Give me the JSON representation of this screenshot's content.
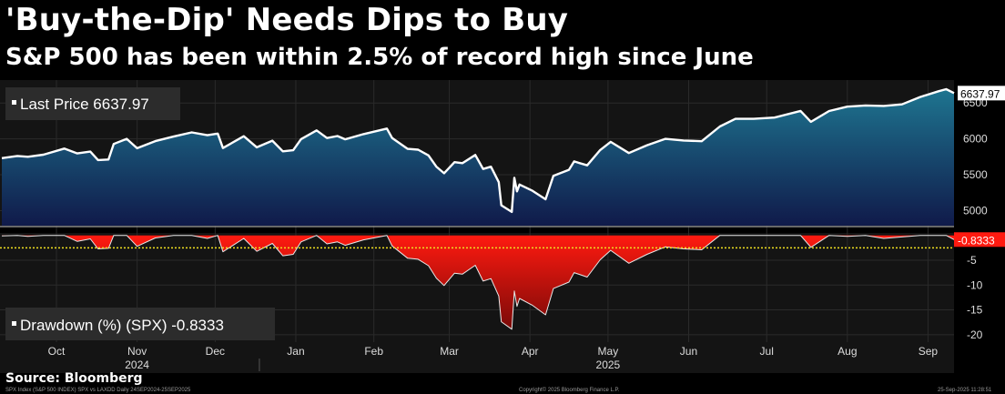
{
  "title": "'Buy-the-Dip' Needs Dips to Buy",
  "subtitle": "S&P 500 has been within 2.5% of record high since June",
  "source": "Source: Bloomberg",
  "footer": {
    "left": "SPX Index (S&P 500 INDEX) SPX vs LAXDD Daily 24SEP2024-25SEP2025",
    "middle": "Copyright© 2025 Bloomberg Finance L.P.",
    "right": "25-Sep-2025 11:28:51"
  },
  "colors": {
    "price_line": "#ffffff",
    "price_fill_top": "#1e7590",
    "price_fill_bottom": "#101a4a",
    "drawdown_fill_top": "#ff1a10",
    "drawdown_fill_bottom": "#7a0a08",
    "threshold_line": "#f0e020",
    "background": "#000000",
    "panel": "#141414"
  },
  "chart_data": [
    {
      "type": "area",
      "legend": "Last Price",
      "last_value_label": "6637.97",
      "yticks": [
        5000,
        5500,
        6000,
        6500
      ],
      "ylim": [
        4790,
        6820
      ],
      "x_date_range": [
        "2024-09-24",
        "2025-09-25"
      ],
      "series": [
        {
          "name": "Last Price",
          "points": [
            [
              "2024-09-24",
              5732
            ],
            [
              "2024-09-30",
              5762
            ],
            [
              "2024-10-04",
              5751
            ],
            [
              "2024-10-10",
              5780
            ],
            [
              "2024-10-18",
              5864
            ],
            [
              "2024-10-23",
              5797
            ],
            [
              "2024-10-28",
              5823
            ],
            [
              "2024-10-31",
              5705
            ],
            [
              "2024-11-04",
              5712
            ],
            [
              "2024-11-06",
              5929
            ],
            [
              "2024-11-11",
              6001
            ],
            [
              "2024-11-15",
              5870
            ],
            [
              "2024-11-22",
              5969
            ],
            [
              "2024-11-29",
              6032
            ],
            [
              "2024-12-06",
              6090
            ],
            [
              "2024-12-12",
              6051
            ],
            [
              "2024-12-16",
              6074
            ],
            [
              "2024-12-18",
              5872
            ],
            [
              "2024-12-26",
              6037
            ],
            [
              "2024-12-31",
              5882
            ],
            [
              "2025-01-06",
              5975
            ],
            [
              "2025-01-10",
              5827
            ],
            [
              "2025-01-14",
              5842
            ],
            [
              "2025-01-17",
              5997
            ],
            [
              "2025-01-23",
              6118
            ],
            [
              "2025-01-27",
              6012
            ],
            [
              "2025-01-31",
              6040
            ],
            [
              "2025-02-03",
              5994
            ],
            [
              "2025-02-10",
              6066
            ],
            [
              "2025-02-19",
              6144
            ],
            [
              "2025-02-21",
              6013
            ],
            [
              "2025-02-27",
              5861
            ],
            [
              "2025-03-03",
              5849
            ],
            [
              "2025-03-07",
              5770
            ],
            [
              "2025-03-10",
              5614
            ],
            [
              "2025-03-13",
              5521
            ],
            [
              "2025-03-17",
              5675
            ],
            [
              "2025-03-20",
              5662
            ],
            [
              "2025-03-25",
              5776
            ],
            [
              "2025-03-28",
              5581
            ],
            [
              "2025-03-31",
              5612
            ],
            [
              "2025-04-03",
              5396
            ],
            [
              "2025-04-04",
              5074
            ],
            [
              "2025-04-08",
              4982
            ],
            [
              "2025-04-09",
              5457
            ],
            [
              "2025-04-10",
              5268
            ],
            [
              "2025-04-11",
              5363
            ],
            [
              "2025-04-16",
              5276
            ],
            [
              "2025-04-21",
              5158
            ],
            [
              "2025-04-24",
              5485
            ],
            [
              "2025-04-30",
              5569
            ],
            [
              "2025-05-02",
              5686
            ],
            [
              "2025-05-07",
              5631
            ],
            [
              "2025-05-12",
              5844
            ],
            [
              "2025-05-16",
              5958
            ],
            [
              "2025-05-23",
              5802
            ],
            [
              "2025-05-30",
              5912
            ],
            [
              "2025-06-06",
              6000
            ],
            [
              "2025-06-13",
              5977
            ],
            [
              "2025-06-20",
              5967
            ],
            [
              "2025-06-27",
              6173
            ],
            [
              "2025-07-03",
              6279
            ],
            [
              "2025-07-10",
              6280
            ],
            [
              "2025-07-18",
              6297
            ],
            [
              "2025-07-28",
              6390
            ],
            [
              "2025-08-01",
              6238
            ],
            [
              "2025-08-08",
              6389
            ],
            [
              "2025-08-15",
              6449
            ],
            [
              "2025-08-22",
              6466
            ],
            [
              "2025-08-29",
              6460
            ],
            [
              "2025-09-05",
              6481
            ],
            [
              "2025-09-12",
              6584
            ],
            [
              "2025-09-19",
              6664
            ],
            [
              "2025-09-22",
              6693
            ],
            [
              "2025-09-25",
              6638
            ]
          ]
        }
      ]
    },
    {
      "type": "area",
      "legend": "Drawdown (%) (SPX)",
      "legend_value": "-0.8333",
      "last_value_label": "-0.8333",
      "yticks": [
        -5,
        -10,
        -15,
        -20
      ],
      "ylim": [
        -21.5,
        0.5
      ],
      "threshold": -2.5,
      "series": [
        {
          "name": "Drawdown (%) (SPX)",
          "points": [
            [
              "2024-09-24",
              -0.1
            ],
            [
              "2024-09-30",
              0
            ],
            [
              "2024-10-04",
              -0.2
            ],
            [
              "2024-10-10",
              0
            ],
            [
              "2024-10-18",
              0
            ],
            [
              "2024-10-23",
              -1.2
            ],
            [
              "2024-10-28",
              -0.7
            ],
            [
              "2024-10-31",
              -2.7
            ],
            [
              "2024-11-04",
              -2.6
            ],
            [
              "2024-11-06",
              0
            ],
            [
              "2024-11-11",
              0
            ],
            [
              "2024-11-15",
              -2.2
            ],
            [
              "2024-11-22",
              -0.5
            ],
            [
              "2024-11-29",
              0
            ],
            [
              "2024-12-06",
              0
            ],
            [
              "2024-12-12",
              -0.6
            ],
            [
              "2024-12-16",
              0
            ],
            [
              "2024-12-18",
              -3.3
            ],
            [
              "2024-12-26",
              -0.6
            ],
            [
              "2024-12-31",
              -3.2
            ],
            [
              "2025-01-06",
              -1.6
            ],
            [
              "2025-01-10",
              -4.1
            ],
            [
              "2025-01-14",
              -3.8
            ],
            [
              "2025-01-17",
              -1.3
            ],
            [
              "2025-01-23",
              0
            ],
            [
              "2025-01-27",
              -1.7
            ],
            [
              "2025-01-31",
              -1.3
            ],
            [
              "2025-02-03",
              -2.0
            ],
            [
              "2025-02-10",
              -0.9
            ],
            [
              "2025-02-19",
              0
            ],
            [
              "2025-02-21",
              -2.1
            ],
            [
              "2025-02-27",
              -4.6
            ],
            [
              "2025-03-03",
              -4.8
            ],
            [
              "2025-03-07",
              -6.1
            ],
            [
              "2025-03-10",
              -8.6
            ],
            [
              "2025-03-13",
              -10.1
            ],
            [
              "2025-03-17",
              -7.6
            ],
            [
              "2025-03-20",
              -7.8
            ],
            [
              "2025-03-25",
              -6.0
            ],
            [
              "2025-03-28",
              -9.2
            ],
            [
              "2025-03-31",
              -8.7
            ],
            [
              "2025-04-03",
              -12.2
            ],
            [
              "2025-04-04",
              -17.4
            ],
            [
              "2025-04-08",
              -18.9
            ],
            [
              "2025-04-09",
              -11.2
            ],
            [
              "2025-04-10",
              -14.3
            ],
            [
              "2025-04-11",
              -12.7
            ],
            [
              "2025-04-16",
              -14.1
            ],
            [
              "2025-04-21",
              -16.0
            ],
            [
              "2025-04-24",
              -10.7
            ],
            [
              "2025-04-30",
              -9.4
            ],
            [
              "2025-05-02",
              -7.5
            ],
            [
              "2025-05-07",
              -8.4
            ],
            [
              "2025-05-12",
              -4.9
            ],
            [
              "2025-05-16",
              -3.0
            ],
            [
              "2025-05-23",
              -5.6
            ],
            [
              "2025-05-30",
              -3.8
            ],
            [
              "2025-06-06",
              -2.3
            ],
            [
              "2025-06-13",
              -2.7
            ],
            [
              "2025-06-20",
              -2.9
            ],
            [
              "2025-06-27",
              0
            ],
            [
              "2025-07-03",
              0
            ],
            [
              "2025-07-10",
              0
            ],
            [
              "2025-07-18",
              0
            ],
            [
              "2025-07-28",
              0
            ],
            [
              "2025-08-01",
              -2.4
            ],
            [
              "2025-08-08",
              0
            ],
            [
              "2025-08-15",
              -0.2
            ],
            [
              "2025-08-22",
              0
            ],
            [
              "2025-08-29",
              -0.6
            ],
            [
              "2025-09-05",
              -0.3
            ],
            [
              "2025-09-12",
              0
            ],
            [
              "2025-09-19",
              0
            ],
            [
              "2025-09-22",
              0
            ],
            [
              "2025-09-25",
              -0.8333
            ]
          ]
        }
      ]
    }
  ],
  "x_axis": {
    "months": [
      {
        "label": "Oct",
        "date": "2024-10-15"
      },
      {
        "label": "Nov",
        "date": "2024-11-15"
      },
      {
        "label": "Dec",
        "date": "2024-12-15"
      },
      {
        "label": "Jan",
        "date": "2025-01-15"
      },
      {
        "label": "Feb",
        "date": "2025-02-14"
      },
      {
        "label": "Mar",
        "date": "2025-03-15"
      },
      {
        "label": "Apr",
        "date": "2025-04-15"
      },
      {
        "label": "May",
        "date": "2025-05-15"
      },
      {
        "label": "Jun",
        "date": "2025-06-15"
      },
      {
        "label": "Jul",
        "date": "2025-07-15"
      },
      {
        "label": "Aug",
        "date": "2025-08-15"
      },
      {
        "label": "Sep",
        "date": "2025-09-15"
      }
    ],
    "years": [
      {
        "label": "2024",
        "date": "2024-11-15"
      },
      {
        "label": "2025",
        "date": "2025-05-15"
      }
    ]
  }
}
